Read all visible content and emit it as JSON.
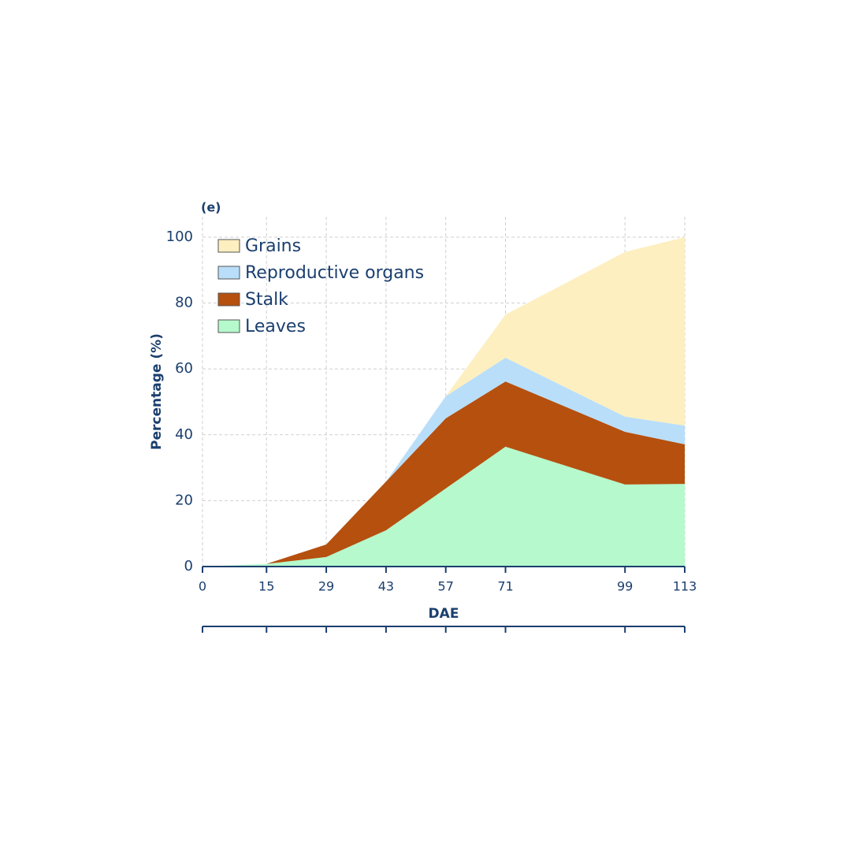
{
  "chart_data": {
    "type": "stacked_area",
    "panel_label": "(e)",
    "xlabel": "DAE",
    "ylabel": "Percentage (%)",
    "x": [
      0,
      15,
      29,
      43,
      57,
      71,
      99,
      113
    ],
    "xlim": [
      0,
      113
    ],
    "xticks": [
      0,
      15,
      29,
      43,
      57,
      71,
      99,
      113
    ],
    "ylim": [
      0,
      100
    ],
    "yticks": [
      0,
      20,
      40,
      60,
      80,
      100
    ],
    "grid": true,
    "legend": "upper left",
    "series": [
      {
        "name": "Grains",
        "color": "#fdefc0",
        "values": [
          0,
          0,
          0,
          0,
          0,
          13.1,
          50,
          57.2
        ]
      },
      {
        "name": "Reproductive organs",
        "color": "#b9def9",
        "values": [
          0,
          0,
          0,
          0,
          6.7,
          7.2,
          4.6,
          5.7
        ]
      },
      {
        "name": "Stalk",
        "color": "#b5500f",
        "values": [
          0,
          0,
          3.8,
          14.8,
          21.3,
          19.8,
          16,
          12
        ]
      },
      {
        "name": "Leaves",
        "color": "#b5f9cc",
        "values": [
          0,
          0.8,
          2.9,
          11,
          23.7,
          36.4,
          24.9,
          25.1
        ]
      }
    ]
  }
}
